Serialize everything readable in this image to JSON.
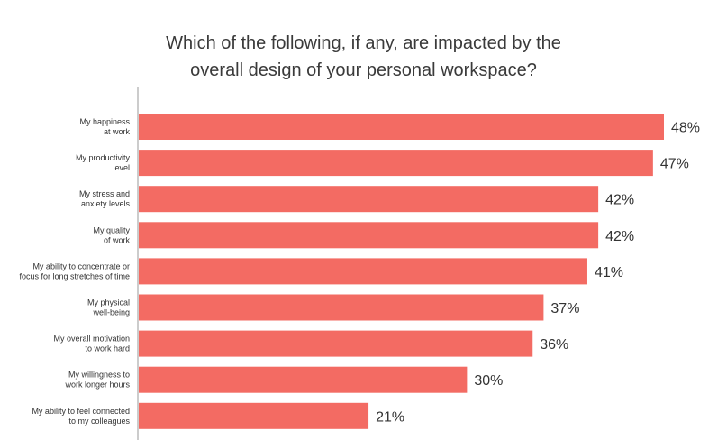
{
  "chart_data": {
    "type": "bar",
    "orientation": "horizontal",
    "title_lines": [
      "Which of the following, if any, are impacted by the",
      "overall design of your personal workspace?"
    ],
    "categories": [
      [
        "My happiness",
        "at work"
      ],
      [
        "My productivity",
        "level"
      ],
      [
        "My stress and",
        "anxiety levels"
      ],
      [
        "My quality",
        "of work"
      ],
      [
        "My ability to concentrate or",
        "focus for long stretches of time"
      ],
      [
        "My physical",
        "well-being"
      ],
      [
        "My overall motivation",
        "to work hard"
      ],
      [
        "My willingness to",
        "work longer hours"
      ],
      [
        "My ability to feel connected",
        "to my colleagues"
      ]
    ],
    "values": [
      48,
      47,
      42,
      42,
      41,
      37,
      36,
      30,
      21
    ],
    "value_labels": [
      "48%",
      "47%",
      "42%",
      "42%",
      "41%",
      "37%",
      "36%",
      "30%",
      "21%"
    ],
    "unit": "%",
    "xlim": [
      0,
      48
    ],
    "grid": false,
    "bar_color": "#f36b63",
    "axis_color": "#cccccc"
  }
}
